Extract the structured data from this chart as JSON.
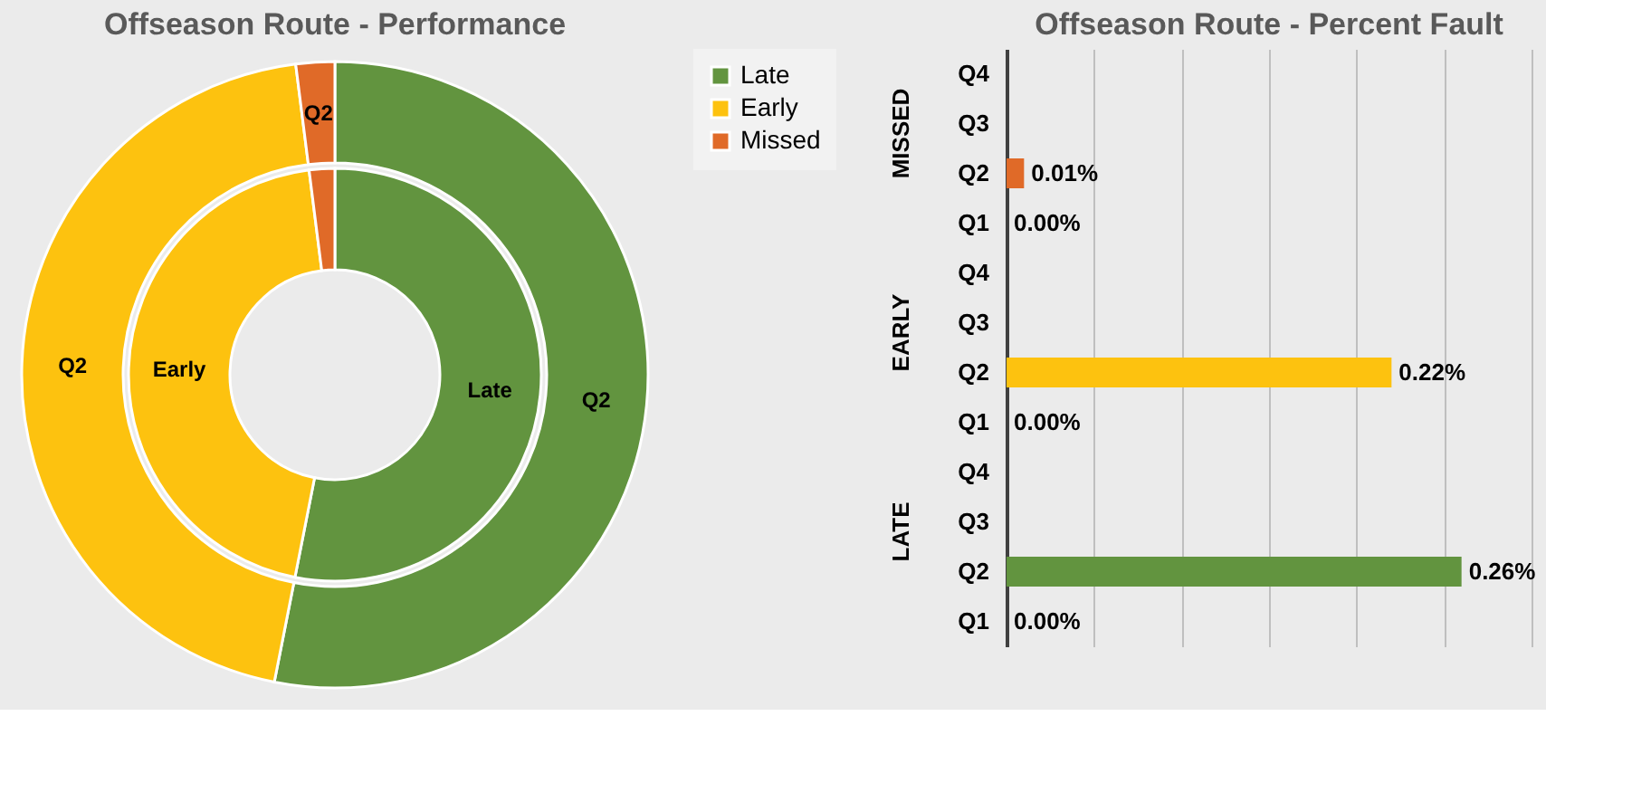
{
  "chart_data": [
    {
      "type": "donut",
      "title": "Offseason Route - Performance",
      "categories": [
        "Late",
        "Early",
        "Missed"
      ],
      "colors": [
        "#62943f",
        "#fdc20f",
        "#e06a28"
      ],
      "legend": "right",
      "series": [
        {
          "values": [
            53.1,
            44.9,
            2.0
          ],
          "value_labels": [
            "Late",
            "Early",
            null
          ]
        },
        {
          "values": [
            53.1,
            44.9,
            2.0
          ],
          "value_labels": [
            "Q2",
            "Q2",
            "Q2"
          ]
        }
      ]
    },
    {
      "type": "bar",
      "orientation": "horizontal",
      "title": "Offseason Route - Percent Fault",
      "categories": [
        "Q4",
        "Q3",
        "Q2",
        "Q1",
        "Q4",
        "Q3",
        "Q2",
        "Q1",
        "Q4",
        "Q3",
        "Q2",
        "Q1"
      ],
      "values": [
        null,
        null,
        0.01,
        0.0,
        null,
        null,
        0.22,
        0.0,
        null,
        null,
        0.26,
        0.0
      ],
      "colors": [
        "#e06a28",
        "#e06a28",
        "#e06a28",
        "#e06a28",
        "#fdc20f",
        "#fdc20f",
        "#fdc20f",
        "#fdc20f",
        "#62943f",
        "#62943f",
        "#62943f",
        "#62943f"
      ],
      "value_labels": [
        null,
        null,
        "0.01%",
        "0.00%",
        null,
        null,
        "0.22%",
        "0.00%",
        null,
        null,
        "0.26%",
        "0.00%"
      ],
      "xlim": [
        0,
        0.3
      ],
      "xticks": [
        0,
        0.05,
        0.1,
        0.15,
        0.2,
        0.25,
        0.3
      ],
      "grid": "x",
      "tick_labels": "y",
      "annotations": [
        "MISSED",
        "EARLY",
        "LATE"
      ]
    }
  ]
}
